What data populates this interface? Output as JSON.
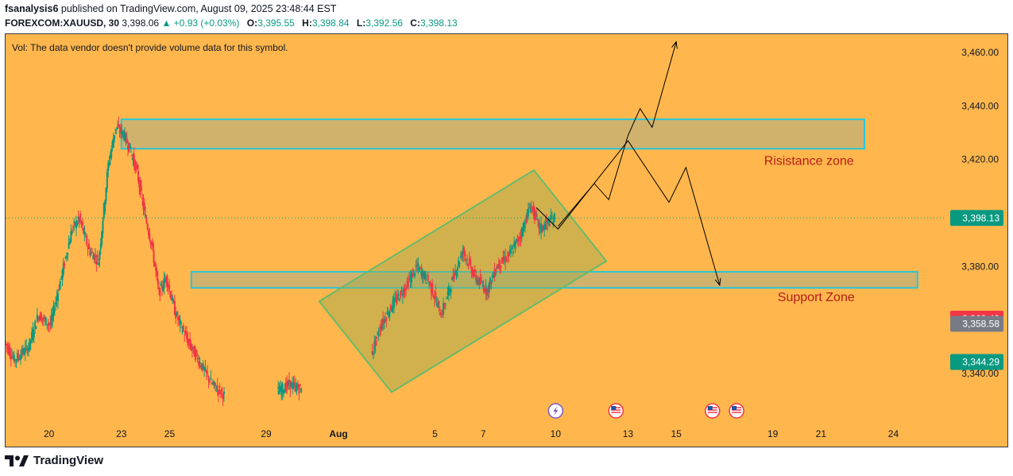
{
  "header": {
    "author": "fsanalysis6",
    "published_text": "published on TradingView.com, August 09, 2025 23:48:44 EST",
    "symbol": "FOREXCOM:XAUUSD, 30",
    "last": "3,398.06",
    "change": "+0.93 (+0.03%)",
    "o_label": "O:",
    "o_value": "3,395.55",
    "h_label": "H:",
    "h_value": "3,398.84",
    "l_label": "L:",
    "l_value": "3,392.56",
    "c_label": "C:",
    "c_value": "3,398.13"
  },
  "volume_note": "Vol: The data vendor doesn't provide volume data for this symbol.",
  "footer": {
    "brand": "TradingView",
    "logo_icon": "tradingview-logo-icon"
  },
  "colors": {
    "background": "#FFB74D",
    "candle_up": "#089981",
    "candle_down": "#F23645",
    "zone_border": "#26C6DA",
    "channel_border": "#66BB6A",
    "annotation_text": "#B71C1C",
    "last_price": "#089981",
    "marker_red": "#F23645",
    "marker_gray": "#787B86"
  },
  "chart_data": {
    "type": "candlestick",
    "title": "",
    "xlabel": "",
    "ylabel": "",
    "ylim": [
      3330,
      3470
    ],
    "grid": false,
    "y_ticks": [
      "3,340.00",
      "3,380.00",
      "3,420.00",
      "3,440.00",
      "3,460.00"
    ],
    "x_ticks": [
      {
        "label": "20",
        "day": 20
      },
      {
        "label": "23",
        "day": 23
      },
      {
        "label": "25",
        "day": 25
      },
      {
        "label": "29",
        "day": 29
      },
      {
        "label": "Aug",
        "day": 32
      },
      {
        "label": "5",
        "day": 36
      },
      {
        "label": "7",
        "day": 38
      },
      {
        "label": "10",
        "day": 41
      },
      {
        "label": "13",
        "day": 44
      },
      {
        "label": "15",
        "day": 46
      },
      {
        "label": "19",
        "day": 50
      },
      {
        "label": "21",
        "day": 52
      },
      {
        "label": "24",
        "day": 55
      }
    ],
    "x_range_days": [
      18.2,
      56.5
    ],
    "price_path": [
      [
        18.2,
        3352
      ],
      [
        18.6,
        3345
      ],
      [
        19.2,
        3350
      ],
      [
        19.6,
        3362
      ],
      [
        20.1,
        3358
      ],
      [
        20.6,
        3378
      ],
      [
        21.0,
        3394
      ],
      [
        21.3,
        3398
      ],
      [
        21.7,
        3386
      ],
      [
        22.1,
        3382
      ],
      [
        22.5,
        3418
      ],
      [
        22.8,
        3432
      ],
      [
        23.1,
        3430
      ],
      [
        23.4,
        3424
      ],
      [
        23.7,
        3415
      ],
      [
        24.0,
        3400
      ],
      [
        24.3,
        3388
      ],
      [
        24.6,
        3370
      ],
      [
        24.9,
        3376
      ],
      [
        25.3,
        3362
      ],
      [
        25.8,
        3352
      ],
      [
        26.3,
        3344
      ],
      [
        26.8,
        3336
      ],
      [
        27.3,
        3332
      ],
      [
        29.5,
        3333
      ],
      [
        30.0,
        3336
      ],
      [
        30.5,
        3334
      ],
      [
        33.4,
        3347
      ],
      [
        33.8,
        3358
      ],
      [
        34.3,
        3366
      ],
      [
        34.8,
        3372
      ],
      [
        35.3,
        3380
      ],
      [
        35.8,
        3374
      ],
      [
        36.3,
        3362
      ],
      [
        36.8,
        3376
      ],
      [
        37.2,
        3386
      ],
      [
        37.7,
        3376
      ],
      [
        38.2,
        3371
      ],
      [
        38.6,
        3380
      ],
      [
        39.1,
        3384
      ],
      [
        39.6,
        3392
      ],
      [
        40.0,
        3403
      ],
      [
        40.4,
        3394
      ],
      [
        40.8,
        3397
      ],
      [
        41.0,
        3398
      ]
    ],
    "last_price": "3,398.13",
    "price_labels": [
      {
        "text": "3,398.13",
        "price": 3398.13,
        "role": "last"
      },
      {
        "text": "3,360.49",
        "price": 3360.49,
        "role": "red"
      },
      {
        "text": "3,358.58",
        "price": 3358.58,
        "role": "gray"
      },
      {
        "text": "3,344.29",
        "price": 3344.29,
        "role": "last"
      }
    ],
    "zones": [
      {
        "name": "resistance",
        "day_from": 23.0,
        "day_to": 53.8,
        "price_from": 3424,
        "price_to": 3435
      },
      {
        "name": "support",
        "day_from": 25.9,
        "day_to": 56.0,
        "price_from": 3372,
        "price_to": 3378
      }
    ],
    "channel": [
      [
        34.2,
        3333
      ],
      [
        43.1,
        3382
      ],
      [
        40.1,
        3416
      ],
      [
        31.2,
        3367
      ]
    ],
    "projection_up": [
      [
        41.1,
        3395
      ],
      [
        42.6,
        3411
      ],
      [
        43.2,
        3405
      ],
      [
        44.0,
        3429
      ],
      [
        44.5,
        3439
      ],
      [
        45.0,
        3432
      ],
      [
        46.0,
        3464
      ]
    ],
    "projection_down": [
      [
        40.2,
        3402
      ],
      [
        41.1,
        3394
      ],
      [
        44.0,
        3427
      ],
      [
        45.7,
        3404
      ],
      [
        46.4,
        3417
      ],
      [
        47.8,
        3373
      ]
    ],
    "annotations": [
      {
        "text": "Risistance zone",
        "day": 51.5,
        "price": 3418
      },
      {
        "text": "Support Zone",
        "day": 51.8,
        "price": 3367
      }
    ],
    "event_markers": [
      {
        "type": "lightning-icon",
        "day": 41
      },
      {
        "type": "us-flag-icon",
        "day": 43.5
      },
      {
        "type": "us-flag-icon",
        "day": 47.5
      },
      {
        "type": "us-flag-icon",
        "day": 48.5
      }
    ]
  }
}
